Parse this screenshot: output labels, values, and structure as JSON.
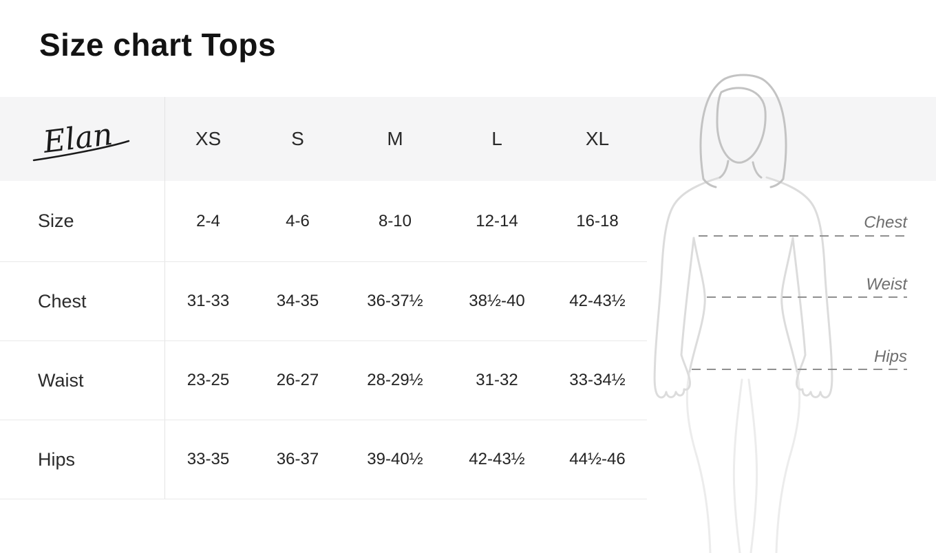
{
  "page": {
    "title": "Size chart Tops"
  },
  "brand": {
    "name": "Elan"
  },
  "table": {
    "columns": [
      "XS",
      "S",
      "M",
      "L",
      "XL"
    ],
    "rows": [
      {
        "label": "Size",
        "values": [
          "2-4",
          "4-6",
          "8-10",
          "12-14",
          "16-18"
        ]
      },
      {
        "label": "Chest",
        "values": [
          "31-33",
          "34-35",
          "36-37½",
          "38½-40",
          "42-43½"
        ]
      },
      {
        "label": "Waist",
        "values": [
          "23-25",
          "26-27",
          "28-29½",
          "31-32",
          "33-34½"
        ]
      },
      {
        "label": "Hips",
        "values": [
          "33-35",
          "36-37",
          "39-40½",
          "42-43½",
          "44½-46"
        ]
      }
    ]
  },
  "figure": {
    "illustration": "woman-outline-icon",
    "annotations": [
      {
        "label": "Chest"
      },
      {
        "label": "Weist"
      },
      {
        "label": "Hips"
      }
    ]
  },
  "colors": {
    "header_band": "#f5f5f6",
    "row_border": "#e9e9e9",
    "column_divider": "#e3e3e3",
    "text_primary": "#131313",
    "text_table": "#232323",
    "figure_outline_head": "#c3c3c3",
    "figure_outline_body": "#dcdcdc",
    "figure_outline_legs": "#ececec",
    "dashed_line": "#8f8f8f",
    "measure_label": "#6e6e6e"
  }
}
